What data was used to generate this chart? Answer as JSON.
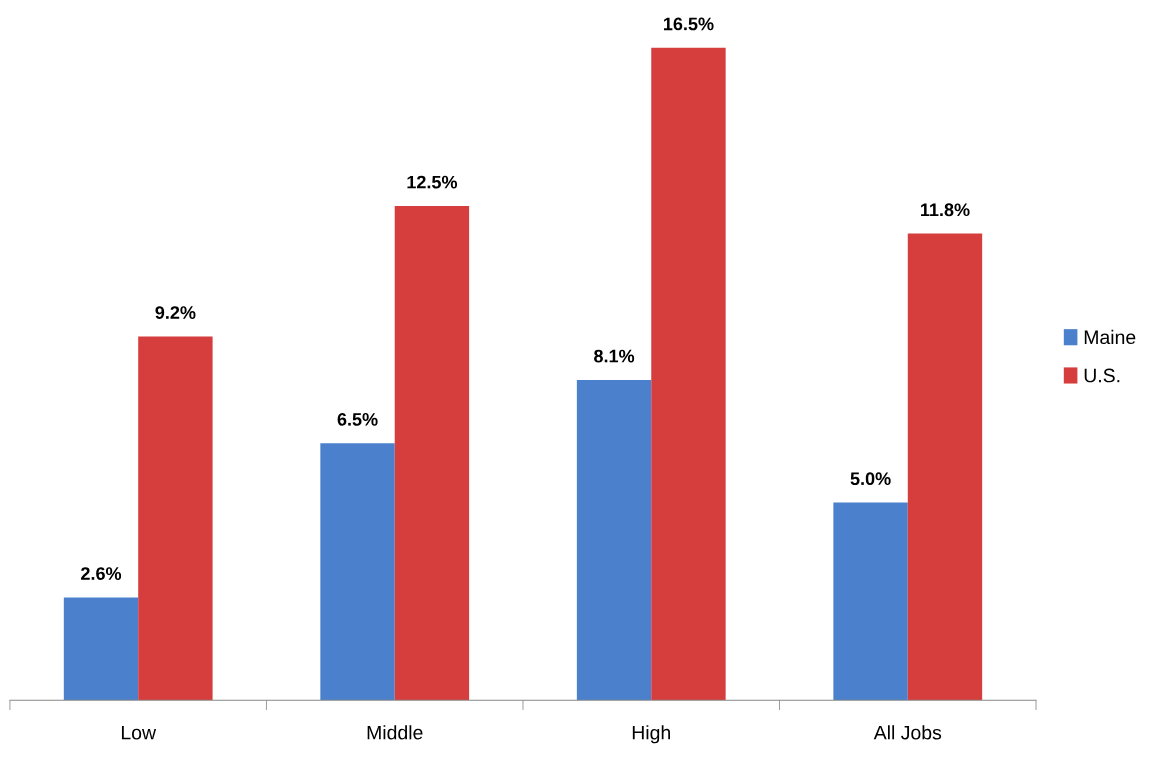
{
  "chart_data": {
    "type": "bar",
    "categories": [
      "Low",
      "Middle",
      "High",
      "All Jobs"
    ],
    "series": [
      {
        "name": "Maine",
        "color": "#4a80cc",
        "values": [
          2.6,
          6.5,
          8.1,
          5.0
        ],
        "value_labels": [
          "2.6%",
          "6.5%",
          "8.1%",
          "5.0%"
        ]
      },
      {
        "name": "U.S.",
        "color": "#d63d3d",
        "values": [
          9.2,
          12.5,
          16.5,
          11.8
        ],
        "value_labels": [
          "9.2%",
          "12.5%",
          "16.5%",
          "11.8%"
        ]
      }
    ],
    "grid": false,
    "legend": "right"
  }
}
